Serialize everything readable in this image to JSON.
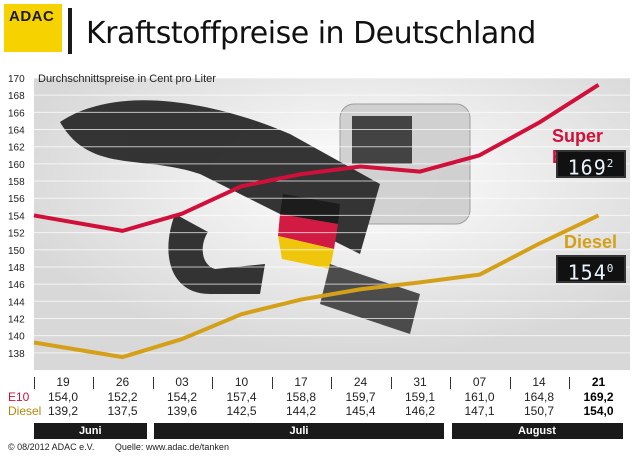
{
  "brand": "ADAC",
  "title": "Kraftstoffpreise in Deutschland",
  "chart_data": {
    "type": "line",
    "ylabel": "Durchschnittspreise in Cent pro Liter",
    "ylim": [
      136,
      170
    ],
    "yticks": [
      138,
      140,
      142,
      144,
      146,
      148,
      150,
      152,
      154,
      156,
      158,
      160,
      162,
      164,
      166,
      168,
      170
    ],
    "categories": [
      "19",
      "26",
      "03",
      "10",
      "17",
      "24",
      "31",
      "07",
      "14",
      "21"
    ],
    "series": [
      {
        "name": "Super E10",
        "short": "E10",
        "color": "#d0103a",
        "values": [
          154.0,
          152.2,
          154.2,
          157.4,
          158.8,
          159.7,
          159.1,
          161.0,
          164.8,
          169.2
        ],
        "labels": [
          "154,0",
          "152,2",
          "154,2",
          "157,4",
          "158,8",
          "159,7",
          "159,1",
          "161,0",
          "164,8",
          "169,2"
        ],
        "display": "169",
        "display_sup": "2"
      },
      {
        "name": "Diesel",
        "short": "Diesel",
        "color": "#d4a017",
        "values": [
          139.2,
          137.5,
          139.6,
          142.5,
          144.2,
          145.4,
          146.2,
          147.1,
          150.7,
          154.0
        ],
        "labels": [
          "139,2",
          "137,5",
          "139,6",
          "142,5",
          "144,2",
          "145,4",
          "146,2",
          "147,1",
          "150,7",
          "154,0"
        ],
        "display": "154",
        "display_sup": "0"
      }
    ],
    "months": [
      "Juni",
      "Juli",
      "August"
    ],
    "grid": true
  },
  "footer": {
    "copyright": "© 08/2012 ADAC e.V.",
    "source": "Quelle: www.adac.de/tanken"
  }
}
